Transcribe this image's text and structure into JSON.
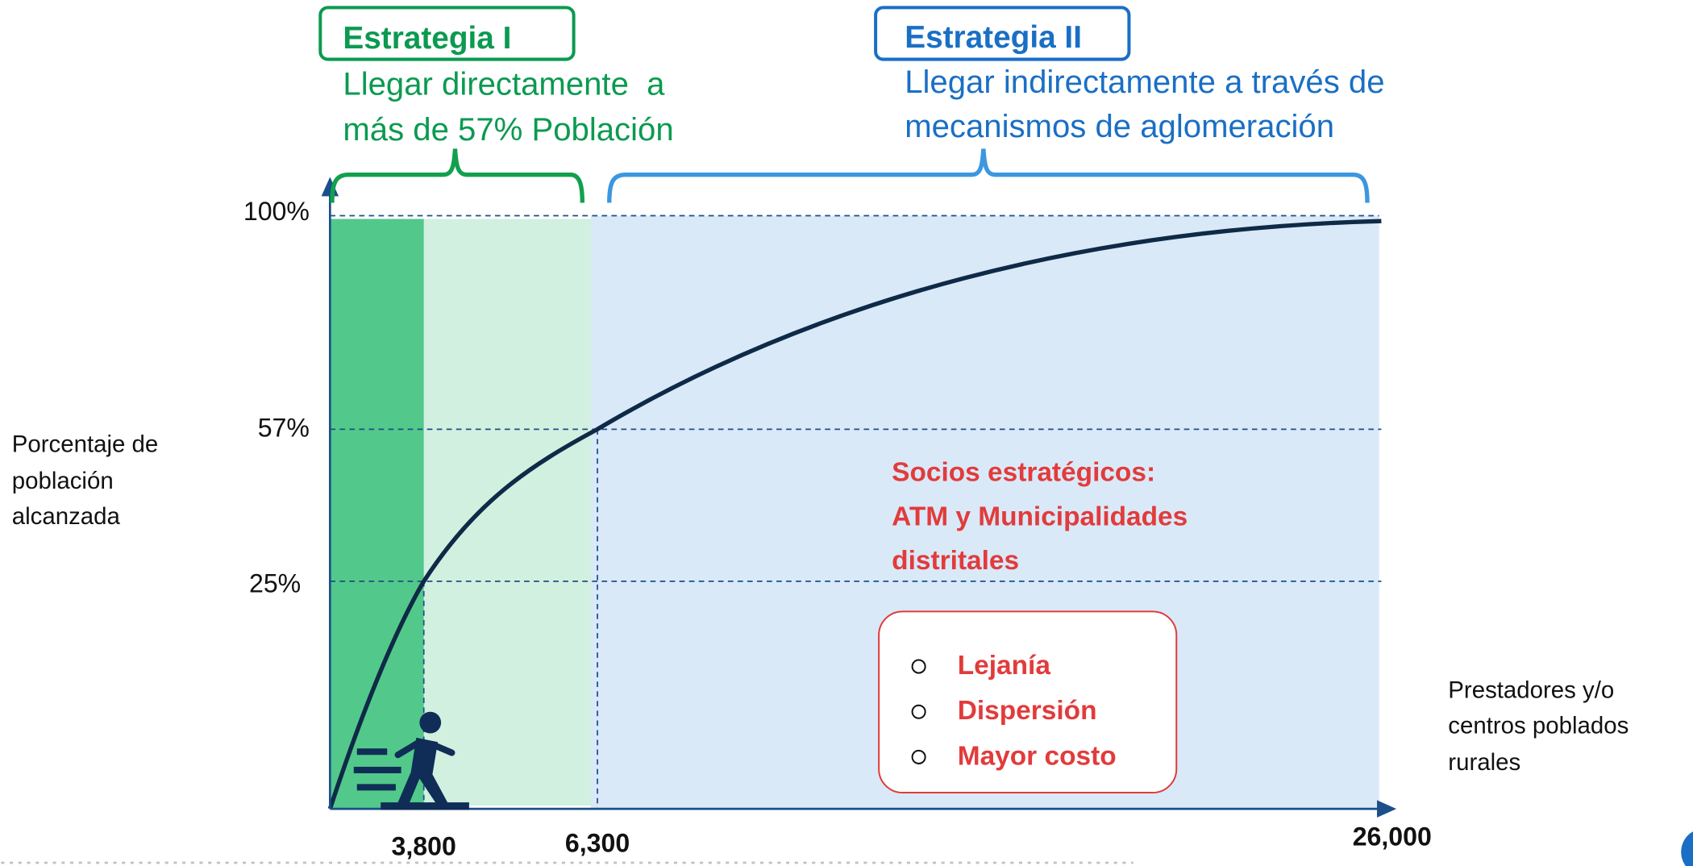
{
  "strategies": [
    {
      "title": "Estrategia I",
      "description": [
        "Llegar directamente  a",
        "más de 57% Población"
      ]
    },
    {
      "title": "Estrategia II",
      "description": [
        "Llegar indirectamente a través de",
        "mecanismos de aglomeración"
      ]
    }
  ],
  "y_axis": {
    "label": [
      "Porcentaje de",
      "población",
      "alcanzada"
    ],
    "ticks": [
      "100%",
      "57%",
      "25%"
    ]
  },
  "x_axis": {
    "label": [
      "Prestadores y/o",
      "centros poblados",
      "rurales"
    ],
    "ticks": [
      "3,800",
      "6,300",
      "26,000"
    ]
  },
  "partners": [
    "Socios estratégicos:",
    "ATM y Municipalidades",
    "distritales"
  ],
  "barriers": [
    "Lejanía",
    "Dispersión",
    "Mayor costo"
  ]
}
